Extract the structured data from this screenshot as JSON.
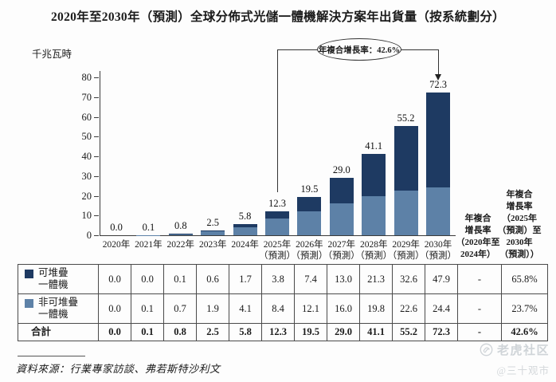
{
  "chart_data": {
    "type": "bar",
    "stacked": true,
    "title": "2020年至2030年（預測）全球分佈式光儲一體機解決方案年出貨量（按系統劃分）",
    "ylabel": "千兆瓦時",
    "xlabel": "",
    "ylim": [
      0,
      80
    ],
    "yticks": [
      0,
      10,
      20,
      30,
      40,
      50,
      60,
      70,
      80
    ],
    "grid": false,
    "legend_position": "table-left",
    "categories": [
      "2020年",
      "2021年",
      "2022年",
      "2023年",
      "2024年",
      "2025年\n（預測）",
      "2026年\n（預測）",
      "2027年\n（預測）",
      "2028年\n（預測）",
      "2029年\n（預測）",
      "2030年\n（預測）"
    ],
    "series": [
      {
        "name": "可堆疊一體機",
        "color": "#1e3a62",
        "values": [
          0.0,
          0.0,
          0.1,
          0.6,
          1.7,
          3.8,
          7.4,
          13.0,
          21.3,
          32.6,
          47.9
        ]
      },
      {
        "name": "非可堆疊一體機",
        "color": "#5d81a7",
        "values": [
          0.0,
          0.1,
          0.7,
          1.9,
          4.1,
          8.4,
          12.1,
          16.0,
          19.8,
          22.6,
          24.4
        ]
      }
    ],
    "totals": [
      "0.0",
      "0.1",
      "0.8",
      "2.5",
      "5.8",
      "12.3",
      "19.5",
      "29.0",
      "41.1",
      "55.2",
      "72.3"
    ],
    "annotation": {
      "text": "年複合增長率：42.6%",
      "from_category": "2025年（預測）",
      "to_category": "2030年（預測）"
    }
  },
  "table": {
    "rows": [
      {
        "label": "可堆疊\n一體機",
        "legend_color": "#1e3a62",
        "bold": false,
        "cells": [
          "0.0",
          "0.0",
          "0.1",
          "0.6",
          "1.7",
          "3.8",
          "7.4",
          "13.0",
          "21.3",
          "32.6",
          "47.9",
          "-",
          "65.8%"
        ]
      },
      {
        "label": "非可堆疊\n一體機",
        "legend_color": "#5d81a7",
        "bold": false,
        "cells": [
          "0.0",
          "0.1",
          "0.7",
          "1.9",
          "4.1",
          "8.4",
          "12.1",
          "16.0",
          "19.8",
          "22.6",
          "24.4",
          "-",
          "23.7%"
        ]
      },
      {
        "label": "合計",
        "legend_color": null,
        "bold": true,
        "cells": [
          "0.0",
          "0.1",
          "0.8",
          "2.5",
          "5.8",
          "12.3",
          "19.5",
          "29.0",
          "41.1",
          "55.2",
          "72.3",
          "-",
          "42.6%"
        ]
      }
    ],
    "cagr_headers": [
      "年複合\n增長率\n（2020年至\n2024年）",
      "年複合\n增長率\n（2025年\n（預測）至\n2030年\n（預測））"
    ]
  },
  "source": "資料來源：行業專家訪談、弗若斯特沙利文",
  "watermark": {
    "brand": "老虎社区",
    "handle": "@三十观市"
  }
}
